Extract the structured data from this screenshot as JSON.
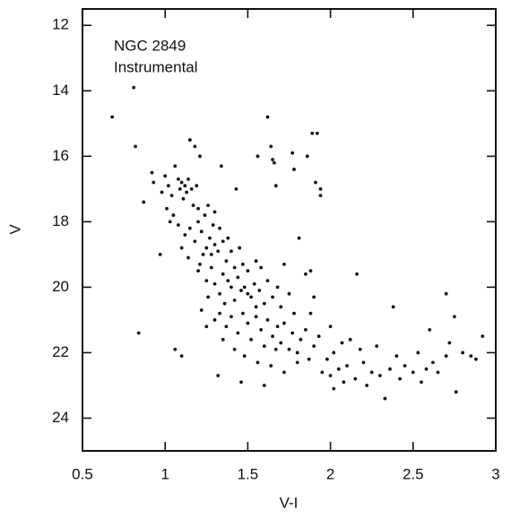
{
  "chart_data": {
    "type": "scatter",
    "annotations": [
      "NGC 2849",
      "Instrumental"
    ],
    "x_label": "V-I",
    "y_label": "V",
    "xlim": [
      0.5,
      3
    ],
    "xticks": [
      0.5,
      1,
      1.5,
      2,
      2.5,
      3
    ],
    "ylim": [
      11.5,
      25
    ],
    "yticks": [
      12,
      14,
      16,
      18,
      20,
      22,
      24
    ],
    "y_inverted": true,
    "color": "#111111",
    "series": [
      {
        "x": [
          0.68,
          0.81,
          0.82,
          0.87,
          0.84,
          0.97,
          1.06,
          1.1,
          1.15,
          1.18,
          1.21,
          1.34,
          1.43,
          1.62,
          1.65,
          1.66,
          1.64,
          1.67,
          1.56,
          1.77,
          1.86,
          1.89,
          1.92,
          1.91,
          1.94,
          1.94,
          1.78,
          1.81,
          1.85,
          1.88,
          2.16,
          2.38,
          2.6,
          2.7,
          2.75,
          2.76,
          1.32,
          1.46,
          1.6,
          1.0,
          1.02,
          1.04,
          1.06,
          1.08,
          1.09,
          1.1,
          1.12,
          1.13,
          1.14,
          1.11,
          1.16,
          1.17,
          1.19,
          0.98,
          1.01,
          0.93,
          0.92,
          1.05,
          1.03,
          1.2,
          1.08,
          1.12,
          1.15,
          1.18,
          1.2,
          1.22,
          1.24,
          1.25,
          1.27,
          1.28,
          1.3,
          1.32,
          1.35,
          1.33,
          1.37,
          1.38,
          1.26,
          1.29,
          1.1,
          1.14,
          1.21,
          1.23,
          1.4,
          1.42,
          1.45,
          1.47,
          1.3,
          1.2,
          1.25,
          1.28,
          1.3,
          1.33,
          1.35,
          1.38,
          1.4,
          1.42,
          1.44,
          1.46,
          1.48,
          1.5,
          1.5,
          1.52,
          1.54,
          1.55,
          1.57,
          1.6,
          1.62,
          1.58,
          1.36,
          1.26,
          1.22,
          1.65,
          1.68,
          1.7,
          1.72,
          1.75,
          1.78,
          1.55,
          1.3,
          1.33,
          1.37,
          1.4,
          1.44,
          1.47,
          1.5,
          1.52,
          1.55,
          1.58,
          1.6,
          1.62,
          1.65,
          1.67,
          1.68,
          1.7,
          1.72,
          1.75,
          1.77,
          1.8,
          1.82,
          1.85,
          1.87,
          1.9,
          1.25,
          1.35,
          1.42,
          1.48,
          1.56,
          1.64,
          1.72,
          1.8,
          1.88,
          1.9,
          1.93,
          1.95,
          1.98,
          2.0,
          2.02,
          2.05,
          2.08,
          2.1,
          2.12,
          2.15,
          2.18,
          2.2,
          2.22,
          2.25,
          2.28,
          2.3,
          2.33,
          2.36,
          2.4,
          2.42,
          2.45,
          2.5,
          2.53,
          2.58,
          2.62,
          2.65,
          2.7,
          2.72,
          2.8,
          2.85,
          2.88,
          2.92,
          2.55,
          2.07,
          2.0,
          2.02
        ],
        "values": [
          14.8,
          13.9,
          15.7,
          17.4,
          21.4,
          19.0,
          21.9,
          22.1,
          15.5,
          15.7,
          16.0,
          16.3,
          17.0,
          14.8,
          16.1,
          16.2,
          15.7,
          16.9,
          16.0,
          15.9,
          16.0,
          15.3,
          15.3,
          16.8,
          17.2,
          17.0,
          16.4,
          18.5,
          19.6,
          19.5,
          19.6,
          20.6,
          21.3,
          20.2,
          20.9,
          23.2,
          22.7,
          22.9,
          23.0,
          16.6,
          16.9,
          17.2,
          16.3,
          16.7,
          17.0,
          16.8,
          16.9,
          17.1,
          16.7,
          17.3,
          17.0,
          17.5,
          16.9,
          17.1,
          17.6,
          16.8,
          16.5,
          17.8,
          18.0,
          17.6,
          18.1,
          18.4,
          18.2,
          18.6,
          18.0,
          18.3,
          17.8,
          18.8,
          18.5,
          19.0,
          18.7,
          18.9,
          18.6,
          18.2,
          19.2,
          18.5,
          17.5,
          18.1,
          18.8,
          19.1,
          19.3,
          19.0,
          18.9,
          19.4,
          18.8,
          19.3,
          17.7,
          19.5,
          19.8,
          19.4,
          19.9,
          20.2,
          19.6,
          19.8,
          20.0,
          20.4,
          19.7,
          20.1,
          20.0,
          20.2,
          19.5,
          20.3,
          19.9,
          20.6,
          20.1,
          20.5,
          19.8,
          19.4,
          20.5,
          20.3,
          20.7,
          20.3,
          20.0,
          20.6,
          19.3,
          20.2,
          20.8,
          19.2,
          21.0,
          20.8,
          21.2,
          20.9,
          21.4,
          20.8,
          21.1,
          21.6,
          20.9,
          21.3,
          21.8,
          21.0,
          21.5,
          21.9,
          21.2,
          21.7,
          21.1,
          21.9,
          21.4,
          22.0,
          21.6,
          21.3,
          22.2,
          21.8,
          21.2,
          21.6,
          21.9,
          22.1,
          22.3,
          22.4,
          22.6,
          22.3,
          20.8,
          20.3,
          21.5,
          22.6,
          22.2,
          22.7,
          23.1,
          22.5,
          22.9,
          22.4,
          21.6,
          22.8,
          21.9,
          22.3,
          23.0,
          22.6,
          21.8,
          22.7,
          23.4,
          22.5,
          22.1,
          22.8,
          22.4,
          22.6,
          22.0,
          22.5,
          22.3,
          22.6,
          22.1,
          21.7,
          22.0,
          22.1,
          22.2,
          21.5,
          22.9,
          21.7,
          21.2,
          22.0
        ]
      }
    ]
  }
}
